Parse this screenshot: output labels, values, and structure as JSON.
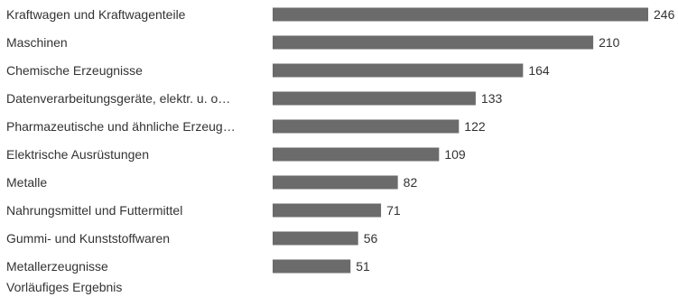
{
  "chart_data": {
    "type": "bar",
    "orientation": "horizontal",
    "categories": [
      "Kraftwagen und Kraftwagenteile",
      "Maschinen",
      "Chemische Erzeugnisse",
      "Datenverarbeitungsgeräte, elektr. u. o…",
      "Pharmazeutische und ähnliche Erzeug…",
      "Elektrische Ausrüstungen",
      "Metalle",
      "Nahrungsmittel und Futtermittel",
      "Gummi- und Kunststoffwaren",
      "Metallerzeugnisse"
    ],
    "values": [
      246,
      210,
      164,
      133,
      122,
      109,
      82,
      71,
      56,
      51
    ],
    "data_labels": [
      "246",
      "210",
      "164",
      "133",
      "122",
      "109",
      "82",
      "71",
      "56",
      "51"
    ],
    "xlim": [
      0,
      246
    ],
    "bar_color": "#6b6b6b",
    "grid": false,
    "legend": "none",
    "footnote": "Vorläufiges Ergebnis"
  }
}
